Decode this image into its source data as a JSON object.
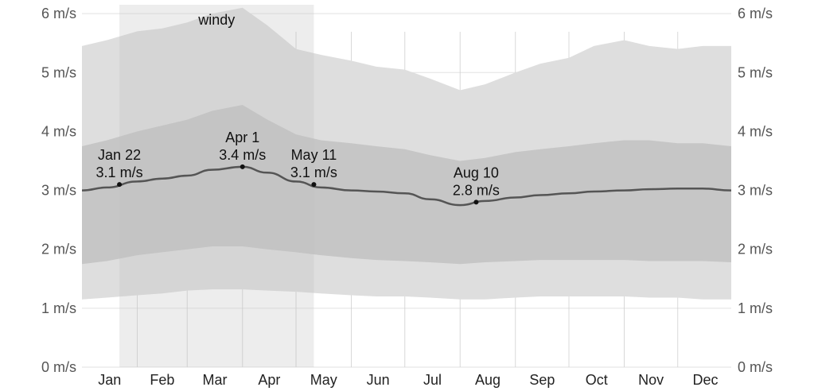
{
  "chart_data": {
    "type": "area",
    "title": "",
    "xlabel": "",
    "ylabel": "",
    "ylim": [
      0,
      6.15
    ],
    "unit": "m/s",
    "y_ticks": [
      {
        "value": 0,
        "label": "0 m/s"
      },
      {
        "value": 1,
        "label": "1 m/s"
      },
      {
        "value": 2,
        "label": "2 m/s"
      },
      {
        "value": 3,
        "label": "3 m/s"
      },
      {
        "value": 4,
        "label": "4 m/s"
      },
      {
        "value": 5,
        "label": "5 m/s"
      },
      {
        "value": 6,
        "label": "6 m/s"
      }
    ],
    "months": [
      "Jan",
      "Feb",
      "Mar",
      "Apr",
      "May",
      "Jun",
      "Jul",
      "Aug",
      "Sep",
      "Oct",
      "Nov",
      "Dec"
    ],
    "season": {
      "label": "windy",
      "start": "Jan 22",
      "end": "May 11"
    },
    "x": [
      "Jan 1",
      "Jan 15",
      "Feb 1",
      "Feb 15",
      "Mar 1",
      "Mar 15",
      "Apr 1",
      "Apr 15",
      "May 1",
      "May 15",
      "Jun 1",
      "Jun 15",
      "Jul 1",
      "Jul 15",
      "Aug 1",
      "Aug 15",
      "Sep 1",
      "Sep 15",
      "Oct 1",
      "Oct 15",
      "Nov 1",
      "Nov 15",
      "Dec 1",
      "Dec 15",
      "Dec 31"
    ],
    "series": [
      {
        "band": "p90",
        "values": [
          5.45,
          5.55,
          5.7,
          5.75,
          5.85,
          6.0,
          6.1,
          5.8,
          5.4,
          5.3,
          5.2,
          5.1,
          5.05,
          4.9,
          4.7,
          4.8,
          5.0,
          5.15,
          5.25,
          5.45,
          5.55,
          5.45,
          5.4,
          5.45,
          5.45
        ]
      },
      {
        "band": "p75",
        "values": [
          3.75,
          3.85,
          4.0,
          4.1,
          4.2,
          4.35,
          4.45,
          4.2,
          3.95,
          3.85,
          3.8,
          3.75,
          3.7,
          3.6,
          3.5,
          3.55,
          3.65,
          3.7,
          3.75,
          3.8,
          3.85,
          3.85,
          3.8,
          3.8,
          3.75
        ]
      },
      {
        "band": "average",
        "values": [
          3.0,
          3.05,
          3.15,
          3.2,
          3.25,
          3.35,
          3.4,
          3.3,
          3.15,
          3.05,
          3.0,
          2.98,
          2.95,
          2.85,
          2.75,
          2.82,
          2.88,
          2.92,
          2.95,
          2.98,
          3.0,
          3.02,
          3.03,
          3.03,
          3.0
        ]
      },
      {
        "band": "p25",
        "values": [
          1.75,
          1.8,
          1.9,
          1.95,
          2.0,
          2.05,
          2.05,
          2.0,
          1.95,
          1.9,
          1.85,
          1.82,
          1.8,
          1.78,
          1.75,
          1.78,
          1.8,
          1.82,
          1.82,
          1.82,
          1.82,
          1.8,
          1.8,
          1.8,
          1.78
        ]
      },
      {
        "band": "p10",
        "values": [
          1.15,
          1.18,
          1.22,
          1.25,
          1.3,
          1.32,
          1.32,
          1.3,
          1.28,
          1.25,
          1.22,
          1.2,
          1.2,
          1.18,
          1.15,
          1.15,
          1.18,
          1.2,
          1.2,
          1.2,
          1.2,
          1.18,
          1.18,
          1.15,
          1.15
        ]
      }
    ],
    "annotations": [
      {
        "date": "Jan 22",
        "value_label": "3.1 m/s",
        "value": 3.1
      },
      {
        "date": "Apr 1",
        "value_label": "3.4 m/s",
        "value": 3.4
      },
      {
        "date": "May 11",
        "value_label": "3.1 m/s",
        "value": 3.1
      },
      {
        "date": "Aug 10",
        "value_label": "2.8 m/s",
        "value": 2.8
      }
    ],
    "grid": true,
    "colors": {
      "outer_band": "#dedede",
      "inner_band": "#c6c6c6",
      "average_line": "#555555",
      "season_shade": "#bdbdbd",
      "grid": "#d0d0d0"
    }
  }
}
